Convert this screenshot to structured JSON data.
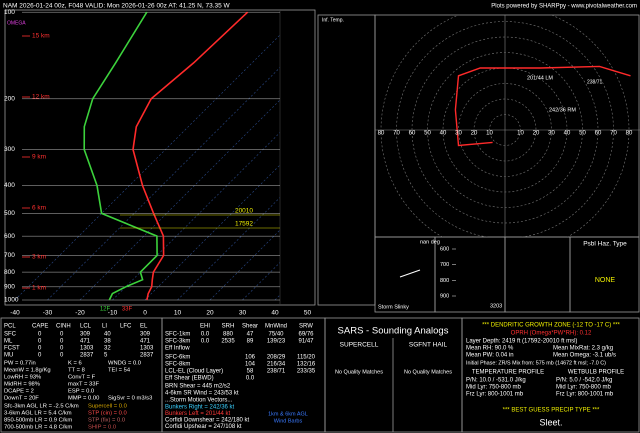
{
  "header": {
    "title": "NAM 2026-01-24 00z, F048   VALID: Mon 2026-01-26 00z   AT: 41.25 N, 73.35 W",
    "credit": "Plots powered by SHARPpy - www.pivotalweather.com"
  },
  "skewt": {
    "omega_label": "OMEGA",
    "pressure_ticks": [
      100,
      200,
      300,
      400,
      500,
      600,
      700,
      800,
      900,
      1000
    ],
    "temp_ticks": [
      -40,
      -30,
      -20,
      -10,
      0,
      10,
      20,
      30,
      40,
      50
    ],
    "height_labels": [
      "15 km",
      "12 km",
      "9 km",
      "6 km",
      "3 km",
      "1 km"
    ],
    "dgz_labels": [
      "20010",
      "17592"
    ],
    "surface_labels": [
      "12F",
      "33F"
    ],
    "inferred_temp_label": "Inf. Temp.",
    "pressure": [
      1000,
      950,
      900,
      850,
      800,
      700,
      600,
      500,
      400,
      300,
      250,
      200,
      150,
      100
    ],
    "temperature": [
      0.6,
      -1,
      -2,
      -4,
      -6,
      -8,
      -14,
      -24,
      -36,
      -50,
      -56,
      -60,
      -58,
      -57
    ],
    "dewpoint": [
      -11,
      -12,
      -10,
      -7,
      -10,
      -10,
      -16,
      -40,
      -50,
      -65,
      -72,
      -78,
      -82,
      -88
    ]
  },
  "hodograph": {
    "rings": [
      10,
      20,
      30,
      40,
      50,
      60,
      70,
      80
    ],
    "u": [
      -8,
      -30,
      -32,
      -30,
      -16,
      23,
      61,
      81
    ],
    "v": [
      -8,
      -10,
      13,
      35,
      40,
      40,
      41,
      35
    ],
    "labels": [
      "201/44 LM",
      "242/36 RM",
      "238/71"
    ]
  },
  "insets": {
    "direction": "nan deg",
    "slinky": "Storm Slinky",
    "slinky_value": "3203",
    "pressure_ticks": [
      600,
      700,
      800,
      900
    ],
    "hazard_title": "Psbl Haz. Type",
    "hazard": "NONE"
  },
  "parcels": {
    "header": [
      "PCL",
      "CAPE",
      "CINH",
      "LCL",
      "LI",
      "LFC",
      "EL"
    ],
    "rows": [
      [
        "SFC",
        "0",
        "0",
        "309",
        "40",
        "309"
      ],
      [
        "ML",
        "0",
        "0",
        "471",
        "38",
        "471"
      ],
      [
        "FCST",
        "0",
        "0",
        "1303",
        "32",
        "1303"
      ],
      [
        "MU",
        "0",
        "0",
        "2837",
        "5",
        "2837"
      ]
    ]
  },
  "indices": [
    [
      "PW = 0.77in",
      "K = 6",
      "WNDG = 0.0"
    ],
    [
      "MeanW = 1.8g/Kg",
      "TT = 8",
      "TEI = 54"
    ],
    [
      "LowRH = 93%",
      "ConvT = F"
    ],
    [
      "MidRH = 98%",
      "maxT = 33F"
    ],
    [
      "DCAPE = 2",
      "ESP = 0.0"
    ],
    [
      "DownT = 20F",
      "MMP = 0.00",
      "SigSvr = 0 m3/s3"
    ]
  ],
  "lapse_rates": [
    "Sfc-3km AGL LR = -2.5 C/km",
    "3-6km AGL LR = 5.4 C/km",
    "850-500mb LR = 0.9 C/km",
    "700-500mb LR = 4.8 C/km"
  ],
  "composites": [
    "Supercell = 0.0",
    "STP (cin) = 0.0",
    "STP (fix) = 0.0",
    "SHIP = 0.0"
  ],
  "kinematics": {
    "header": [
      "EHI",
      "SRH",
      "Shear",
      "MnWind",
      "SRW"
    ],
    "rows": [
      [
        "SFC-1km",
        "0.0",
        "880",
        "47",
        "75/40",
        "69/76"
      ],
      [
        "SFC-3km",
        "0.0",
        "2535",
        "89",
        "139/23",
        "91/47"
      ],
      [
        "Eff Inflow"
      ]
    ],
    "shear_rows": [
      [
        "SFC-6km",
        "106",
        "208/29",
        "115/20"
      ],
      [
        "SFC-8km",
        "104",
        "216/34",
        "132/16"
      ],
      [
        "LCL-EL (Cloud Layer)",
        "58",
        "238/71",
        "233/35"
      ],
      [
        "Eff Shear (EBWD)",
        "0.0"
      ]
    ],
    "lines": [
      "BRN Shear = 445 m2/s2",
      "4-6km SR Wind = 243/53 kt"
    ],
    "motion_title": "...Storm Motion Vectors...",
    "motion": [
      "Bunkers Right = 242/36 kt",
      "Bunkers Left = 201/44 kt",
      "Corfidi Downshear = 242/180 kt",
      "Corfidi Upshear = 247/108 kt"
    ],
    "barb_note": [
      "1km & 6km AGL",
      "Wind Barbs"
    ]
  },
  "sars": {
    "title": "SARS - Sounding Analogs",
    "supercell": "SUPERCELL",
    "hail": "SGFNT HAIL",
    "supercell_result": "No Quality Matches",
    "hail_result": "No Quality Matches"
  },
  "winter": {
    "title": "*** DENDRITIC GROWTH ZONE (-12 TO -17 C) ***",
    "oprh": "OPRH (Omega*PW*RH): 0.12",
    "depth": "Layer Depth: 2419 ft (17592-20010 ft msl)",
    "means": [
      [
        "Mean RH: 90.0 %",
        "Mean MixRat: 2.3 g/kg"
      ],
      [
        "Mean PW: 0.04 in",
        "Mean Omega: -3.1 ub/s"
      ]
    ],
    "phase": "Initial Phase: ZR/S Mix from: 575 mb (14672 ft msl; -7.0 C)",
    "profile_headers": [
      "TEMPERATURE PROFILE",
      "WETBULB PROFILE"
    ],
    "profile_rows": [
      [
        "P/N: 10.0 / -531.0 J/kg",
        "P/N: 5.0 / -542.0 J/kg"
      ],
      [
        "Mid Lyr: 750-800 mb",
        "Mid Lyr: 750-800 mb"
      ],
      [
        "Frz Lyr: 800-1001 mb",
        "Frz Lyr: 800-1001 mb"
      ]
    ],
    "precip_title": "*** BEST GUESS PRECIP TYPE ***",
    "precip": "Sleet."
  }
}
